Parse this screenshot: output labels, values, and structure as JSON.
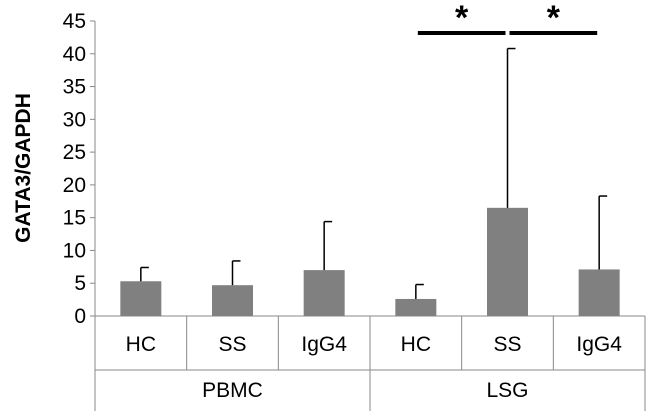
{
  "chart_data": {
    "type": "bar",
    "ylabel": "GATA3/GAPDH",
    "ylim": [
      0,
      45
    ],
    "yticks": [
      0,
      5,
      10,
      15,
      20,
      25,
      30,
      35,
      40,
      45
    ],
    "groups": [
      {
        "label": "PBMC",
        "categories": [
          "HC",
          "SS",
          "IgG4"
        ]
      },
      {
        "label": "LSG",
        "categories": [
          "HC",
          "SS",
          "IgG4"
        ]
      }
    ],
    "categories": [
      "HC",
      "SS",
      "IgG4",
      "HC",
      "SS",
      "IgG4"
    ],
    "values": [
      5.3,
      4.7,
      7.0,
      2.6,
      16.5,
      7.1
    ],
    "error_upper": [
      2.1,
      3.7,
      7.4,
      2.2,
      24.3,
      11.2
    ],
    "bar_color": "#808080",
    "significance": [
      {
        "from": 3,
        "to": 4,
        "label": "*"
      },
      {
        "from": 4,
        "to": 5,
        "label": "*"
      }
    ],
    "grid": false,
    "legend": "none"
  }
}
